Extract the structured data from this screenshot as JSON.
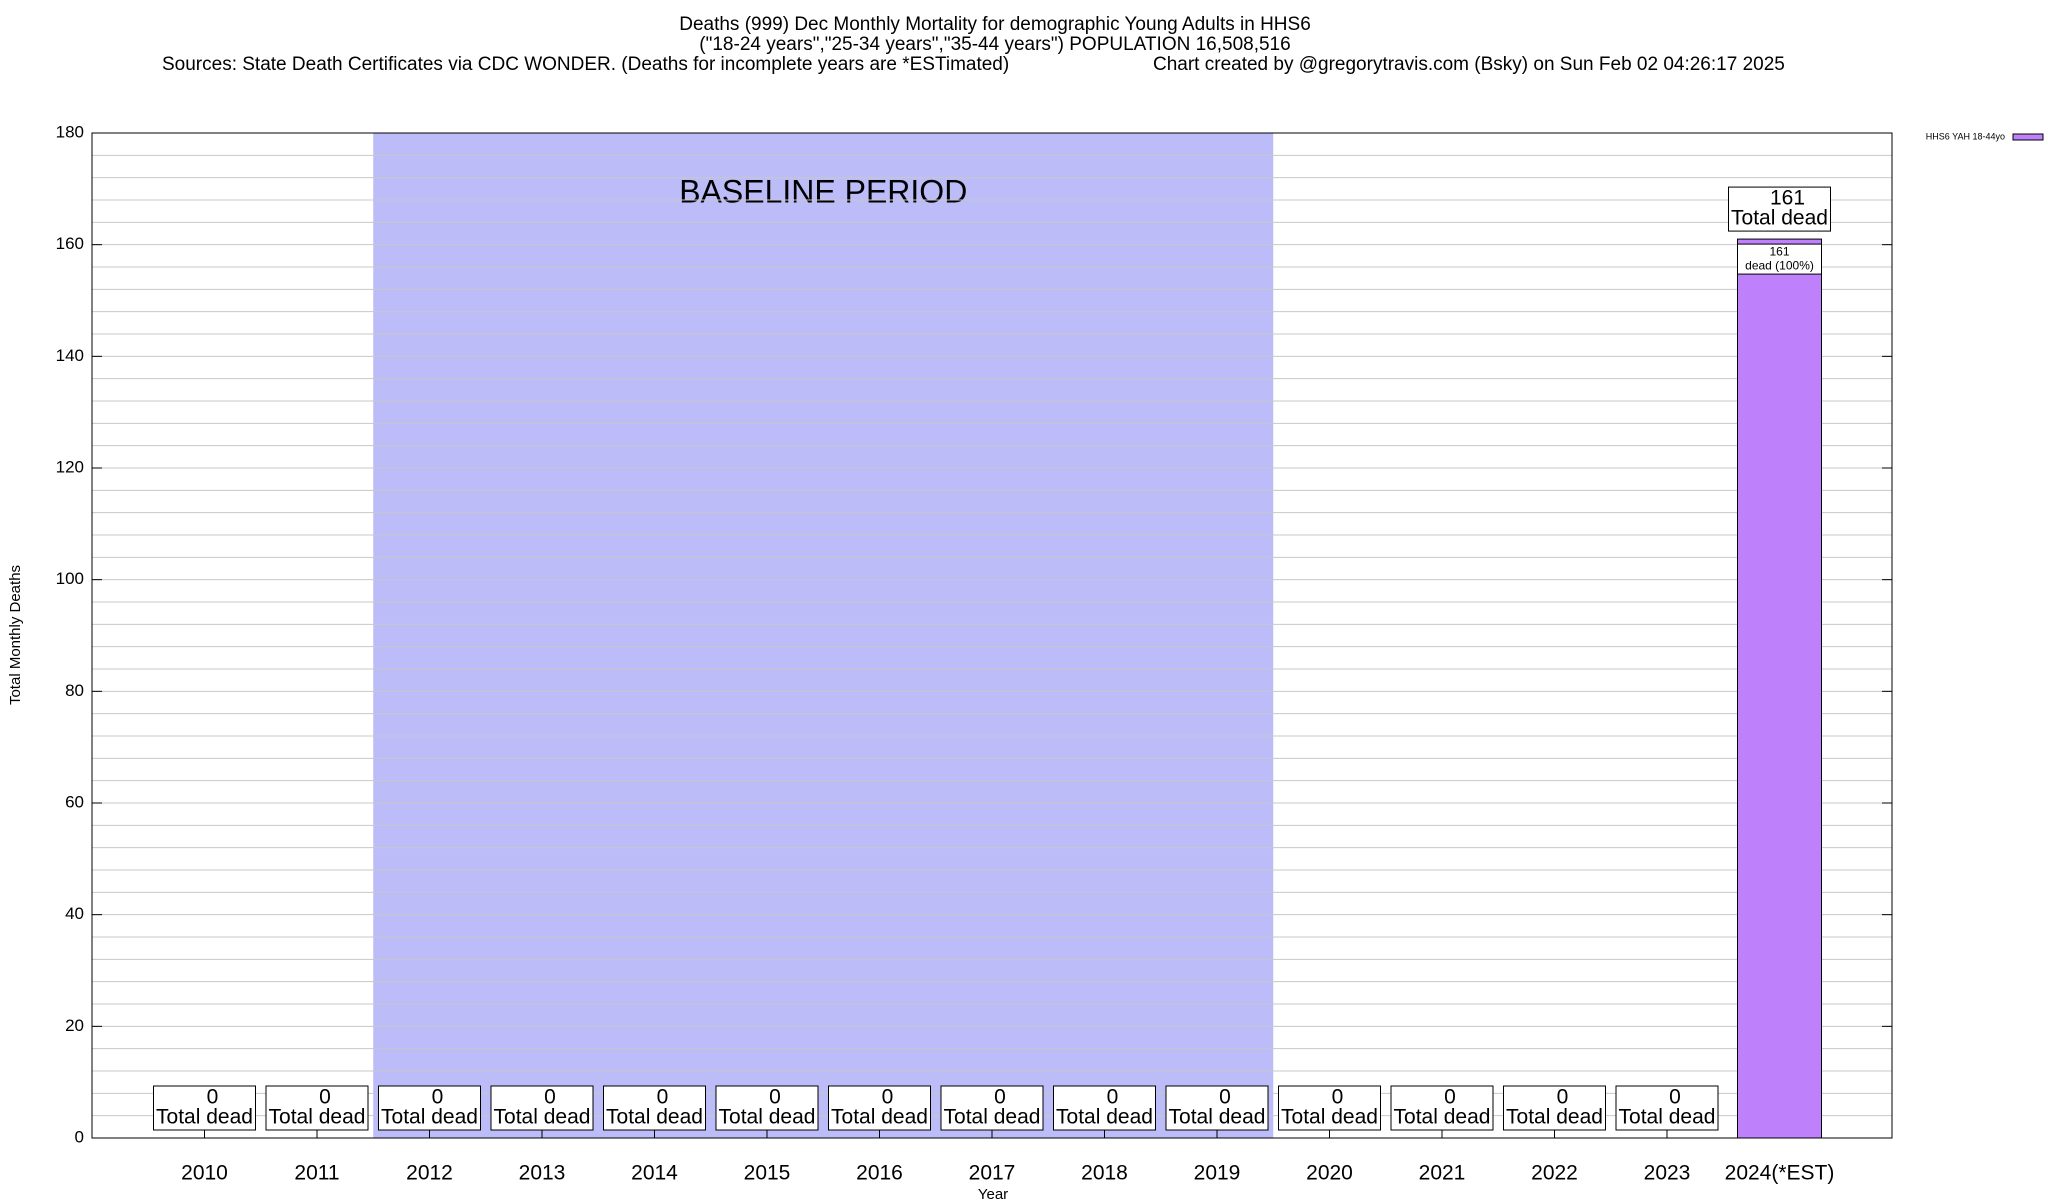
{
  "chart_data": {
    "type": "bar",
    "title": "Deaths (999) Dec Monthly Mortality for demographic Young Adults in HHS6",
    "subtitle": "(\"18-24 years\",\"25-34 years\",\"35-44 years\") POPULATION 16,508,516",
    "source": "Sources: State Death Certificates via CDC WONDER. (Deaths for incomplete years are *ESTimated)",
    "credit": "Chart created by @gregorytravis.com (Bsky) on Sun Feb 02 04:26:17 2025",
    "x_label": "Year",
    "y_label": "Total Monthly Deaths",
    "categories": [
      "2010",
      "2011",
      "2012",
      "2013",
      "2014",
      "2015",
      "2016",
      "2017",
      "2018",
      "2019",
      "2020",
      "2021",
      "2022",
      "2023",
      "2024(*EST)"
    ],
    "series": [
      {
        "name": "HHS6 YAH 18-44yo",
        "color": "#bf80fc",
        "values": [
          0,
          0,
          0,
          0,
          0,
          0,
          0,
          0,
          0,
          0,
          0,
          0,
          0,
          0,
          161
        ]
      }
    ],
    "label_text": "Total dead",
    "inner_label_text": "dead (100%)",
    "baseline": {
      "label": "BASELINE PERIOD",
      "from": 2012,
      "to": 2019,
      "color": "#bcbcf8"
    },
    "ylim": [
      0,
      180
    ],
    "yticks": [
      0,
      20,
      40,
      60,
      80,
      100,
      120,
      140,
      160,
      180
    ],
    "minor_grid_step": 4,
    "grid": true,
    "legend": "top-right"
  }
}
